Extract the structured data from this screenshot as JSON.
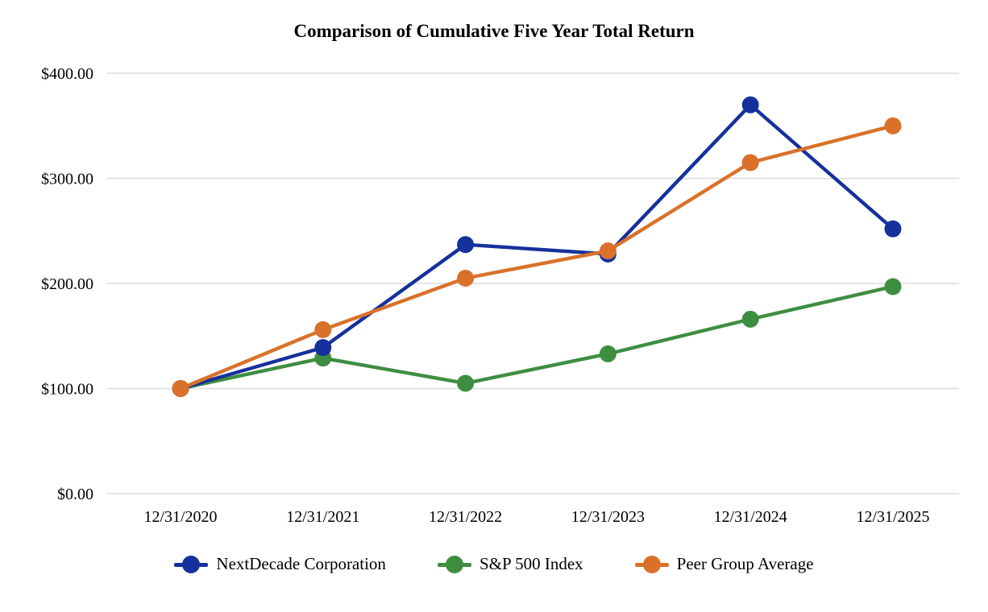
{
  "chart_data": {
    "type": "line",
    "title": "Comparison of Cumulative Five Year Total Return",
    "categories": [
      "12/31/2020",
      "12/31/2021",
      "12/31/2022",
      "12/31/2023",
      "12/31/2024",
      "12/31/2025"
    ],
    "series": [
      {
        "key": "nextdecade-corporation",
        "name": "NextDecade Corporation",
        "color": "#16309C",
        "values": [
          100,
          139,
          237,
          228,
          370,
          252
        ]
      },
      {
        "key": "sp-500-index",
        "name": "S&P 500 Index",
        "color": "#3E8E41",
        "values": [
          100,
          129,
          105,
          133,
          166,
          197
        ]
      },
      {
        "key": "peer-group-average",
        "name": "Peer Group Average",
        "color": "#D9712A",
        "values": [
          100,
          156,
          205,
          231,
          315,
          350
        ]
      }
    ],
    "y_ticks": [
      {
        "label": "$400.00",
        "value": 400
      },
      {
        "label": "$300.00",
        "value": 300
      },
      {
        "label": "$200.00",
        "value": 200
      },
      {
        "label": "$100.00",
        "value": 100
      },
      {
        "label": "$0.00",
        "value": 0
      }
    ],
    "ylim": [
      0,
      400
    ],
    "xlabel": "",
    "ylabel": "",
    "grid": "horizontal",
    "grid_color": "#DCDCDC",
    "legend_position": "bottom",
    "marker": "circle"
  }
}
